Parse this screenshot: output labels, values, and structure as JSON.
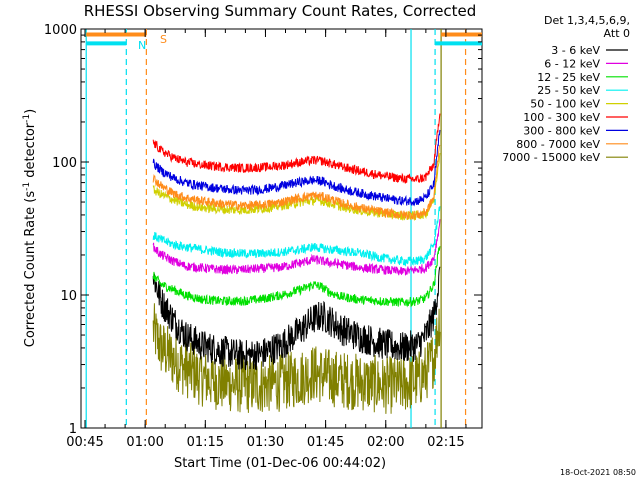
{
  "chart_data": {
    "type": "line",
    "title": "RHESSI Observing Summary Count Rates, Corrected",
    "xlabel": "Start Time (01-Dec-06 00:44:02)",
    "ylabel": {
      "prefix": "Corrected Count Rate (s",
      "sup": "-1",
      "suffix": " detector",
      "close": ")"
    },
    "x_unit": "minutes since 00:44:02",
    "xlim": [
      0,
      100
    ],
    "ylim": [
      1,
      1000
    ],
    "y_scale": "log",
    "x_ticks": [
      {
        "x": 1,
        "label": "00:45"
      },
      {
        "x": 16,
        "label": "01:00"
      },
      {
        "x": 31,
        "label": "01:15"
      },
      {
        "x": 46,
        "label": "01:30"
      },
      {
        "x": 61,
        "label": "01:45"
      },
      {
        "x": 76,
        "label": "02:00"
      },
      {
        "x": 91,
        "label": "02:15"
      }
    ],
    "y_ticks": [
      {
        "y": 1,
        "label": "1"
      },
      {
        "y": 10,
        "label": "10"
      },
      {
        "y": 100,
        "label": "100"
      },
      {
        "y": 1000,
        "label": "1000"
      }
    ],
    "legend_header": [
      "Det 1,3,4,5,6,9,",
      "Att 0"
    ],
    "legend_position": "right",
    "markers": [
      {
        "label": "N",
        "x": 11.3,
        "color": "#00e0f0"
      },
      {
        "label": "S",
        "x": 16.3,
        "color": "#ff8c1a"
      }
    ],
    "series": [
      {
        "name": "3 - 6 keV",
        "color": "#000000",
        "points": [
          [
            18,
            14
          ],
          [
            20,
            9
          ],
          [
            23,
            6.5
          ],
          [
            26,
            5
          ],
          [
            30,
            4.2
          ],
          [
            35,
            3.8
          ],
          [
            40,
            3.5
          ],
          [
            45,
            3.6
          ],
          [
            50,
            4.2
          ],
          [
            55,
            5.5
          ],
          [
            58,
            6.6
          ],
          [
            60,
            7
          ],
          [
            62,
            6.5
          ],
          [
            65,
            5.5
          ],
          [
            70,
            4.8
          ],
          [
            75,
            4.3
          ],
          [
            80,
            4.0
          ],
          [
            84,
            4.2
          ],
          [
            86,
            5
          ],
          [
            88,
            7
          ],
          [
            89.5,
            14
          ]
        ]
      },
      {
        "name": "6 - 12 keV",
        "color": "#e000e0",
        "points": [
          [
            18,
            23
          ],
          [
            20,
            20
          ],
          [
            23,
            18
          ],
          [
            26,
            16.5
          ],
          [
            30,
            16
          ],
          [
            35,
            15.5
          ],
          [
            40,
            15.5
          ],
          [
            45,
            15.8
          ],
          [
            50,
            16.2
          ],
          [
            55,
            17.5
          ],
          [
            58,
            18.5
          ],
          [
            60,
            18
          ],
          [
            62,
            17.5
          ],
          [
            65,
            17
          ],
          [
            70,
            16
          ],
          [
            75,
            15.5
          ],
          [
            80,
            15
          ],
          [
            84,
            15.5
          ],
          [
            86,
            16
          ],
          [
            88,
            19
          ],
          [
            89.5,
            35
          ]
        ]
      },
      {
        "name": "12 - 25 keV",
        "color": "#00e000",
        "points": [
          [
            18,
            14
          ],
          [
            20,
            12
          ],
          [
            23,
            11
          ],
          [
            26,
            10
          ],
          [
            30,
            9.3
          ],
          [
            35,
            9
          ],
          [
            40,
            9
          ],
          [
            45,
            9.3
          ],
          [
            50,
            10
          ],
          [
            55,
            11
          ],
          [
            58,
            12
          ],
          [
            60,
            11.5
          ],
          [
            62,
            10.5
          ],
          [
            65,
            9.7
          ],
          [
            70,
            9.2
          ],
          [
            75,
            9
          ],
          [
            80,
            8.8
          ],
          [
            84,
            9
          ],
          [
            86,
            9.5
          ],
          [
            88,
            12
          ],
          [
            89.5,
            25
          ]
        ]
      },
      {
        "name": "25 - 50 keV",
        "color": "#00f0f0",
        "points": [
          [
            18,
            28
          ],
          [
            20,
            26
          ],
          [
            23,
            24
          ],
          [
            26,
            23
          ],
          [
            30,
            22
          ],
          [
            35,
            21
          ],
          [
            40,
            20.5
          ],
          [
            45,
            20.5
          ],
          [
            50,
            21
          ],
          [
            55,
            22
          ],
          [
            58,
            23
          ],
          [
            60,
            22.5
          ],
          [
            62,
            22
          ],
          [
            65,
            21.5
          ],
          [
            70,
            20.5
          ],
          [
            75,
            19
          ],
          [
            80,
            18
          ],
          [
            84,
            18
          ],
          [
            86,
            19
          ],
          [
            88,
            24
          ],
          [
            89.5,
            48
          ]
        ]
      },
      {
        "name": "50 - 100 keV",
        "color": "#d0d000",
        "points": [
          [
            18,
            62
          ],
          [
            20,
            57
          ],
          [
            23,
            52
          ],
          [
            26,
            48
          ],
          [
            30,
            45.5
          ],
          [
            35,
            44
          ],
          [
            40,
            43.5
          ],
          [
            45,
            44.5
          ],
          [
            50,
            47
          ],
          [
            55,
            50
          ],
          [
            58,
            51.5
          ],
          [
            60,
            51
          ],
          [
            62,
            49
          ],
          [
            65,
            46
          ],
          [
            70,
            43
          ],
          [
            75,
            41
          ],
          [
            80,
            39.5
          ],
          [
            84,
            39.5
          ],
          [
            86,
            41
          ],
          [
            88,
            52
          ],
          [
            89.5,
            120
          ]
        ]
      },
      {
        "name": "100 - 300 keV",
        "color": "#ff0000",
        "points": [
          [
            18,
            140
          ],
          [
            20,
            122
          ],
          [
            23,
            108
          ],
          [
            26,
            100
          ],
          [
            30,
            95
          ],
          [
            35,
            92
          ],
          [
            40,
            90
          ],
          [
            45,
            91
          ],
          [
            50,
            94
          ],
          [
            55,
            100
          ],
          [
            58,
            103
          ],
          [
            60,
            102
          ],
          [
            62,
            98
          ],
          [
            65,
            92
          ],
          [
            70,
            85
          ],
          [
            75,
            79
          ],
          [
            80,
            75
          ],
          [
            84,
            74
          ],
          [
            86,
            77
          ],
          [
            88,
            96
          ],
          [
            89.5,
            240
          ]
        ]
      },
      {
        "name": "300 - 800 keV",
        "color": "#0000e0",
        "points": [
          [
            18,
            98
          ],
          [
            20,
            86
          ],
          [
            23,
            76
          ],
          [
            26,
            70
          ],
          [
            30,
            66
          ],
          [
            35,
            63
          ],
          [
            40,
            61
          ],
          [
            45,
            62
          ],
          [
            50,
            66
          ],
          [
            55,
            71
          ],
          [
            58,
            73
          ],
          [
            60,
            72
          ],
          [
            62,
            68
          ],
          [
            65,
            63
          ],
          [
            70,
            58
          ],
          [
            75,
            54
          ],
          [
            80,
            51
          ],
          [
            84,
            51
          ],
          [
            86,
            54
          ],
          [
            88,
            68
          ],
          [
            89.5,
            175
          ]
        ]
      },
      {
        "name": "800 - 7000 keV",
        "color": "#ff8c1a",
        "points": [
          [
            18,
            76
          ],
          [
            20,
            66
          ],
          [
            23,
            58
          ],
          [
            26,
            54
          ],
          [
            30,
            51
          ],
          [
            35,
            48.5
          ],
          [
            40,
            47
          ],
          [
            45,
            47.5
          ],
          [
            50,
            50
          ],
          [
            55,
            54
          ],
          [
            58,
            56
          ],
          [
            60,
            55
          ],
          [
            62,
            53
          ],
          [
            65,
            49
          ],
          [
            70,
            45
          ],
          [
            75,
            42
          ],
          [
            80,
            40
          ],
          [
            84,
            40
          ],
          [
            86,
            42
          ],
          [
            88,
            54
          ],
          [
            89.5,
            145
          ]
        ]
      },
      {
        "name": "7000 - 15000 keV",
        "color": "#808000",
        "points": [
          [
            18,
            5.5
          ],
          [
            20,
            4
          ],
          [
            23,
            3.3
          ],
          [
            26,
            2.8
          ],
          [
            30,
            2.4
          ],
          [
            35,
            2.2
          ],
          [
            40,
            2.1
          ],
          [
            45,
            2.1
          ],
          [
            50,
            2.2
          ],
          [
            55,
            2.4
          ],
          [
            58,
            2.6
          ],
          [
            60,
            2.5
          ],
          [
            62,
            2.4
          ],
          [
            65,
            2.3
          ],
          [
            70,
            2.2
          ],
          [
            75,
            2.1
          ],
          [
            80,
            2.1
          ],
          [
            84,
            2.3
          ],
          [
            86,
            2.6
          ],
          [
            88,
            3.4
          ],
          [
            89.5,
            7
          ]
        ]
      }
    ],
    "vertical_lines": [
      {
        "x": 1.3,
        "color": "#00e0f0",
        "dash": false
      },
      {
        "x": 11.3,
        "color": "#00e0f0",
        "dash": true
      },
      {
        "x": 16.3,
        "color": "#ff8c1a",
        "dash": true
      },
      {
        "x": 82.3,
        "color": "#00e0f0",
        "dash": false
      },
      {
        "x": 88.3,
        "color": "#00e0f0",
        "dash": true
      },
      {
        "x": 89.8,
        "color": "#808000",
        "dash": false
      },
      {
        "x": 95.9,
        "color": "#ff8c1a",
        "dash": true
      }
    ],
    "status_bars": [
      {
        "x0": 1.3,
        "x1": 11.3,
        "y": 780,
        "color": "#00e0f0"
      },
      {
        "x0": 1.3,
        "x1": 16.3,
        "y": 910,
        "color": "#ff8c1a"
      },
      {
        "x0": 88.3,
        "x1": 100,
        "y": 780,
        "color": "#00e0f0"
      },
      {
        "x0": 89.8,
        "x1": 100,
        "y": 910,
        "color": "#ff8c1a"
      }
    ]
  },
  "timestamp": "18-Oct-2021 08:50"
}
